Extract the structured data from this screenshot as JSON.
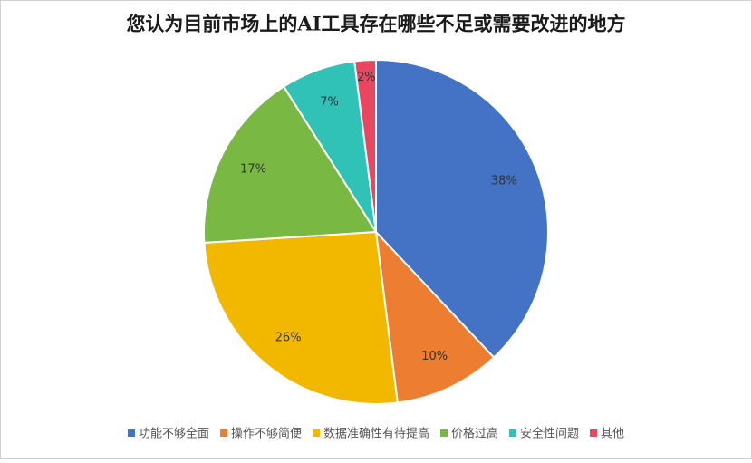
{
  "chart_data": {
    "type": "pie",
    "title": "您认为目前市场上的AI工具存在哪些不足或需要改进的地方",
    "categories": [
      "功能不够全面",
      "操作不够简便",
      "数据准确性有待提高",
      "价格过高",
      "安全性问题",
      "其他"
    ],
    "values": [
      38,
      10,
      26,
      17,
      7,
      2
    ],
    "value_labels": [
      "38%",
      "10%",
      "26%",
      "17%",
      "7%",
      "2%"
    ],
    "colors": [
      "#4472c4",
      "#ed7d31",
      "#f2b800",
      "#78b843",
      "#30c2b6",
      "#e8475f"
    ],
    "legend": "bottom"
  }
}
